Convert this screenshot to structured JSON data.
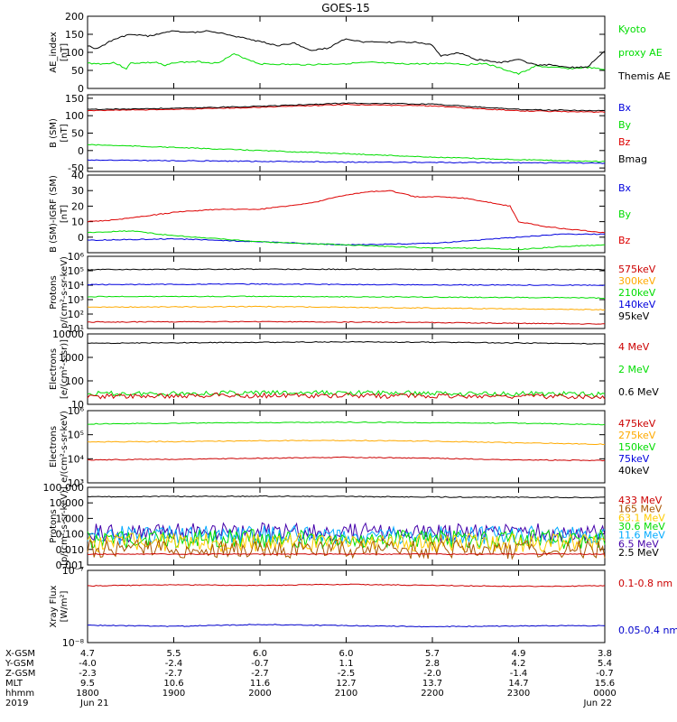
{
  "title": "GOES-15",
  "chart_data": [
    {
      "type": "line",
      "ylabel_lines": [
        "AE_index",
        "[nT]"
      ],
      "ylim": [
        0,
        200
      ],
      "yticks": [
        "0",
        "50",
        "100",
        "150",
        "200"
      ],
      "series": [
        {
          "name": "Kyoto",
          "color": "#00dd00",
          "x": [
            0,
            0.2,
            0.3,
            0.45,
            0.5,
            0.8,
            0.9,
            1.0,
            1.3,
            1.5,
            1.7,
            2.0,
            2.4,
            2.6,
            2.9,
            3.3,
            3.6,
            3.9,
            4.2,
            4.4,
            4.6,
            4.8,
            5.0,
            5.2,
            5.4,
            5.6,
            5.8,
            6.0
          ],
          "y": [
            70,
            68,
            72,
            55,
            70,
            72,
            62,
            72,
            74,
            70,
            95,
            68,
            66,
            66,
            68,
            72,
            68,
            68,
            70,
            66,
            70,
            55,
            40,
            62,
            58,
            55,
            58,
            52
          ]
        },
        {
          "name": "Themis AE",
          "color": "#000000",
          "x": [
            0,
            0.1,
            0.3,
            0.5,
            0.7,
            1.0,
            1.2,
            1.4,
            1.6,
            1.8,
            2.0,
            2.2,
            2.4,
            2.6,
            2.8,
            3.0,
            3.2,
            3.4,
            3.6,
            3.8,
            4.0,
            4.1,
            4.2,
            4.3,
            4.5,
            4.6,
            4.8,
            5.0,
            5.2,
            5.4,
            5.6,
            5.8,
            6.0
          ],
          "y": [
            118,
            110,
            135,
            150,
            145,
            160,
            155,
            160,
            150,
            140,
            130,
            118,
            125,
            105,
            112,
            138,
            128,
            128,
            128,
            128,
            120,
            90,
            95,
            100,
            80,
            78,
            72,
            80,
            65,
            65,
            58,
            60,
            105
          ]
        }
      ],
      "legend": [
        {
          "lines": [
            "Kyoto",
            "proxy AE"
          ],
          "color": "#00dd00"
        },
        {
          "lines": [
            "Themis AE"
          ],
          "color": "#000000"
        }
      ]
    },
    {
      "type": "line",
      "ylabel_lines": [
        "B (SM)",
        "[nT]"
      ],
      "ylim": [
        -60,
        160
      ],
      "yticks": [
        "-50",
        "0",
        "50",
        "100",
        "150"
      ],
      "series": [
        {
          "name": "Bx",
          "color": "#0000dd",
          "x": [
            0,
            3,
            6
          ],
          "y": [
            -27,
            -33,
            -36
          ]
        },
        {
          "name": "By",
          "color": "#00dd00",
          "x": [
            0,
            1,
            2,
            3,
            4,
            5,
            6
          ],
          "y": [
            17,
            9,
            0,
            -9,
            -19,
            -26,
            -32
          ]
        },
        {
          "name": "Bz",
          "color": "#dd0000",
          "x": [
            0,
            1,
            2,
            3,
            4,
            5,
            6
          ],
          "y": [
            115,
            118,
            124,
            132,
            128,
            114,
            110
          ]
        },
        {
          "name": "Bmag",
          "color": "#000000",
          "x": [
            0,
            1,
            2,
            3,
            4,
            5,
            6
          ],
          "y": [
            118,
            121,
            127,
            136,
            133,
            118,
            114
          ]
        }
      ],
      "legend": [
        {
          "lines": [
            "Bx"
          ],
          "color": "#0000dd"
        },
        {
          "lines": [
            "By"
          ],
          "color": "#00dd00"
        },
        {
          "lines": [
            "Bz"
          ],
          "color": "#dd0000"
        },
        {
          "lines": [
            "Bmag"
          ],
          "color": "#000000"
        }
      ]
    },
    {
      "type": "line",
      "ylabel_lines": [
        "B (SM)-IGRF (SM)",
        "[nT]"
      ],
      "ylim": [
        -10,
        40
      ],
      "yticks": [
        "0",
        "10",
        "20",
        "30",
        "40"
      ],
      "series": [
        {
          "name": "Bx",
          "color": "#0000dd",
          "x": [
            0,
            1,
            2,
            3,
            4,
            4.5,
            5,
            5.5,
            6
          ],
          "y": [
            -2,
            -1,
            -3,
            -5,
            -4,
            -2,
            0,
            2,
            2
          ]
        },
        {
          "name": "By",
          "color": "#00dd00",
          "x": [
            0,
            0.5,
            1,
            1.5,
            2,
            2.5,
            3,
            3.5,
            4,
            4.5,
            5,
            5.5,
            6
          ],
          "y": [
            3,
            4,
            1,
            -1,
            -3,
            -4,
            -5,
            -6,
            -7,
            -7,
            -8,
            -6,
            -5
          ]
        },
        {
          "name": "Bz",
          "color": "#dd0000",
          "x": [
            0,
            0.3,
            0.6,
            1,
            1.5,
            2,
            2.3,
            2.6,
            2.9,
            3.2,
            3.5,
            3.8,
            4.1,
            4.4,
            4.7,
            4.9,
            5.0,
            5.3,
            5.6,
            6.0
          ],
          "y": [
            10,
            11,
            13,
            16,
            18,
            18,
            20,
            22,
            26,
            29,
            30,
            26,
            26,
            25,
            22,
            20,
            10,
            7,
            5,
            3
          ]
        }
      ],
      "legend": [
        {
          "lines": [
            "Bx"
          ],
          "color": "#0000dd"
        },
        {
          "lines": [
            "By"
          ],
          "color": "#00dd00"
        },
        {
          "lines": [
            "Bz"
          ],
          "color": "#dd0000"
        }
      ]
    },
    {
      "type": "line",
      "yscale": "log",
      "ylabel_lines": [
        "Protons",
        "p/(cm²-s-sr-keV)"
      ],
      "ylim": [
        10,
        1000000
      ],
      "yticks": [
        "10¹",
        "10²",
        "10³",
        "10⁴",
        "10⁵",
        "10⁶"
      ],
      "series": [
        {
          "name": "95keV",
          "color": "#000000",
          "x": [
            0,
            2,
            4,
            6
          ],
          "y": [
            120000,
            130000,
            125000,
            120000
          ]
        },
        {
          "name": "140keV",
          "color": "#0000dd",
          "x": [
            0,
            2,
            4,
            6
          ],
          "y": [
            11000,
            12000,
            10500,
            10000
          ]
        },
        {
          "name": "210keV",
          "color": "#00dd00",
          "x": [
            0,
            2,
            4,
            6
          ],
          "y": [
            1600,
            1700,
            1500,
            1300
          ]
        },
        {
          "name": "300keV",
          "color": "#ffaa00",
          "x": [
            0,
            2,
            4,
            6
          ],
          "y": [
            300,
            330,
            260,
            200
          ]
        },
        {
          "name": "575keV",
          "color": "#cc0000",
          "x": [
            0,
            2,
            4,
            6
          ],
          "y": [
            28,
            30,
            26,
            20
          ]
        }
      ],
      "legend": [
        {
          "lines": [
            "575keV"
          ],
          "color": "#cc0000"
        },
        {
          "lines": [
            "300keV"
          ],
          "color": "#ffaa00"
        },
        {
          "lines": [
            "210keV"
          ],
          "color": "#00dd00"
        },
        {
          "lines": [
            "140keV"
          ],
          "color": "#0000dd"
        },
        {
          "lines": [
            "95keV"
          ],
          "color": "#000000"
        }
      ]
    },
    {
      "type": "line",
      "yscale": "log",
      "ylabel_lines": [
        "Electrons",
        "[e/(cm²-s-sr)]"
      ],
      "ylim": [
        10,
        10000
      ],
      "yticks": [
        "10",
        "100",
        "1000",
        "10000"
      ],
      "series": [
        {
          "name": "0.6 MeV",
          "color": "#000000",
          "x": [
            0,
            1.5,
            3,
            4.5,
            6
          ],
          "y": [
            4000,
            4300,
            4600,
            4300,
            3800
          ]
        },
        {
          "name": "2 MeV",
          "color": "#00dd00",
          "x": [
            0,
            1.5,
            3,
            4.5,
            6
          ],
          "y": [
            28,
            30,
            31,
            29,
            27
          ]
        },
        {
          "name": "4 MeV",
          "color": "#cc0000",
          "x": [
            0,
            1.5,
            3,
            4.5,
            6
          ],
          "y": [
            22,
            24,
            23,
            22,
            21
          ]
        }
      ],
      "legend": [
        {
          "lines": [
            "4 MeV"
          ],
          "color": "#cc0000"
        },
        {
          "lines": [
            "2 MeV"
          ],
          "color": "#00dd00"
        },
        {
          "lines": [
            "0.6 MeV"
          ],
          "color": "#000000"
        }
      ]
    },
    {
      "type": "line",
      "yscale": "log",
      "ylabel_lines": [
        "Electrons",
        "e/(cm²-s-sr-keV)"
      ],
      "ylim": [
        1000,
        1000000
      ],
      "yticks": [
        "10³",
        "10⁴",
        "10⁵",
        "10⁶"
      ],
      "series": [
        {
          "name": "40keV",
          "color": "#000000",
          "x": [
            0,
            6
          ],
          "y": [
            null,
            null
          ]
        },
        {
          "name": "75keV",
          "color": "#0000dd",
          "x": [
            0,
            6
          ],
          "y": [
            null,
            null
          ]
        },
        {
          "name": "150keV",
          "color": "#00dd00",
          "x": [
            0,
            1,
            2,
            3,
            4,
            5,
            6
          ],
          "y": [
            280000,
            300000,
            320000,
            330000,
            320000,
            300000,
            260000
          ]
        },
        {
          "name": "275keV",
          "color": "#ffaa00",
          "x": [
            0,
            1,
            2,
            3,
            4,
            5,
            6
          ],
          "y": [
            50000,
            52000,
            56000,
            58000,
            54000,
            46000,
            40000
          ]
        },
        {
          "name": "475keV",
          "color": "#cc0000",
          "x": [
            0,
            1,
            2,
            3,
            4,
            5,
            6
          ],
          "y": [
            9000,
            9500,
            10500,
            11500,
            10500,
            9000,
            8500
          ]
        }
      ],
      "legend": [
        {
          "lines": [
            "475keV"
          ],
          "color": "#cc0000"
        },
        {
          "lines": [
            "275keV"
          ],
          "color": "#ffaa00"
        },
        {
          "lines": [
            "150keV"
          ],
          "color": "#00dd00"
        },
        {
          "lines": [
            "75keV"
          ],
          "color": "#0000dd"
        },
        {
          "lines": [
            "40keV"
          ],
          "color": "#000000"
        }
      ]
    },
    {
      "type": "line",
      "yscale": "log",
      "ylabel_lines": [
        "Protons",
        "[p/(cm²-s-sr-keV)]"
      ],
      "ylim": [
        0.001,
        100
      ],
      "yticks": [
        "0.001",
        "0.010",
        "0.100",
        "1.000",
        "10.000",
        "100.000"
      ],
      "series": [
        {
          "name": "2.5 MeV",
          "color": "#000000",
          "x": [
            0,
            2,
            4,
            6
          ],
          "y": [
            25,
            27,
            24,
            22
          ]
        },
        {
          "name": "6.5 MeV",
          "color": "#4400aa",
          "x": [
            0,
            2,
            4,
            6
          ],
          "y": [
            0.12,
            0.13,
            0.12,
            0.12
          ]
        },
        {
          "name": "11.6 MeV",
          "color": "#00aaff",
          "x": [
            0,
            2,
            4,
            6
          ],
          "y": [
            0.08,
            0.09,
            0.08,
            0.08
          ]
        },
        {
          "name": "30.6 MeV",
          "color": "#00dd00",
          "x": [
            0,
            2,
            4,
            6
          ],
          "y": [
            0.045,
            0.05,
            0.045,
            0.045
          ]
        },
        {
          "name": "63.1 MeV",
          "color": "#ffcc00",
          "x": [
            0,
            2,
            4,
            6
          ],
          "y": [
            0.028,
            0.03,
            0.028,
            0.028
          ]
        },
        {
          "name": "165 MeV",
          "color": "#aa5500",
          "x": [
            0,
            2,
            4,
            6
          ],
          "y": [
            0.01,
            0.011,
            0.01,
            0.01
          ]
        },
        {
          "name": "433 MeV",
          "color": "#cc0000",
          "x": [
            0,
            2,
            4,
            6
          ],
          "y": [
            0.005,
            0.005,
            0.005,
            0.005
          ]
        }
      ],
      "legend": [
        {
          "lines": [
            "433 MeV"
          ],
          "color": "#cc0000"
        },
        {
          "lines": [
            "165 MeV"
          ],
          "color": "#aa5500"
        },
        {
          "lines": [
            "63.1 MeV"
          ],
          "color": "#ffcc00"
        },
        {
          "lines": [
            "30.6 MeV"
          ],
          "color": "#00dd00"
        },
        {
          "lines": [
            "11.6 MeV"
          ],
          "color": "#00aaff"
        },
        {
          "lines": [
            "6.5 MeV"
          ],
          "color": "#4400aa"
        },
        {
          "lines": [
            "2.5 MeV"
          ],
          "color": "#000000"
        }
      ]
    },
    {
      "type": "line",
      "yscale": "log",
      "ylabel_lines": [
        "Xray Flux",
        "[W/m²]"
      ],
      "ylim": [
        1e-08,
        1e-07
      ],
      "yticks": [
        "10⁻⁸",
        "10⁻⁷"
      ],
      "series": [
        {
          "name": "0.1-0.8 nm",
          "color": "#cc0000",
          "x": [
            0,
            1,
            2,
            3,
            4,
            5,
            6
          ],
          "y": [
            6.1e-08,
            6.3e-08,
            6.2e-08,
            6.4e-08,
            6.2e-08,
            6e-08,
            6.1e-08
          ]
        },
        {
          "name": "0.05-0.4 nm",
          "color": "#0000cc",
          "x": [
            0,
            1,
            2,
            3,
            4,
            5,
            6
          ],
          "y": [
            1.74e-08,
            1.68e-08,
            1.78e-08,
            1.72e-08,
            1.66e-08,
            1.7e-08,
            1.72e-08
          ]
        }
      ],
      "legend": [
        {
          "lines": [
            "0.1-0.8 nm"
          ],
          "color": "#cc0000"
        },
        {
          "lines": [
            "0.05-0.4 nm"
          ],
          "color": "#0000cc"
        }
      ]
    }
  ],
  "xaxis": {
    "xlim": [
      0,
      6
    ],
    "tick_x": [
      0,
      1,
      2,
      3,
      4,
      5,
      6
    ],
    "row_labels": [
      "X-GSM",
      "Y-GSM",
      "Z-GSM",
      "MLT",
      "hhmm",
      "2019"
    ],
    "columns": [
      [
        "4.7",
        "-4.0",
        "-2.3",
        "9.5",
        "1800",
        "Jun 21"
      ],
      [
        "5.5",
        "-2.4",
        "-2.7",
        "10.6",
        "1900",
        ""
      ],
      [
        "6.0",
        "-0.7",
        "-2.7",
        "11.6",
        "2000",
        ""
      ],
      [
        "6.0",
        "1.1",
        "-2.5",
        "12.7",
        "2100",
        ""
      ],
      [
        "5.7",
        "2.8",
        "-2.0",
        "13.7",
        "2200",
        ""
      ],
      [
        "4.9",
        "4.2",
        "-1.4",
        "14.7",
        "2300",
        ""
      ],
      [
        "3.8",
        "5.4",
        "-0.7",
        "15.6",
        "0000",
        "Jun 22"
      ]
    ]
  }
}
